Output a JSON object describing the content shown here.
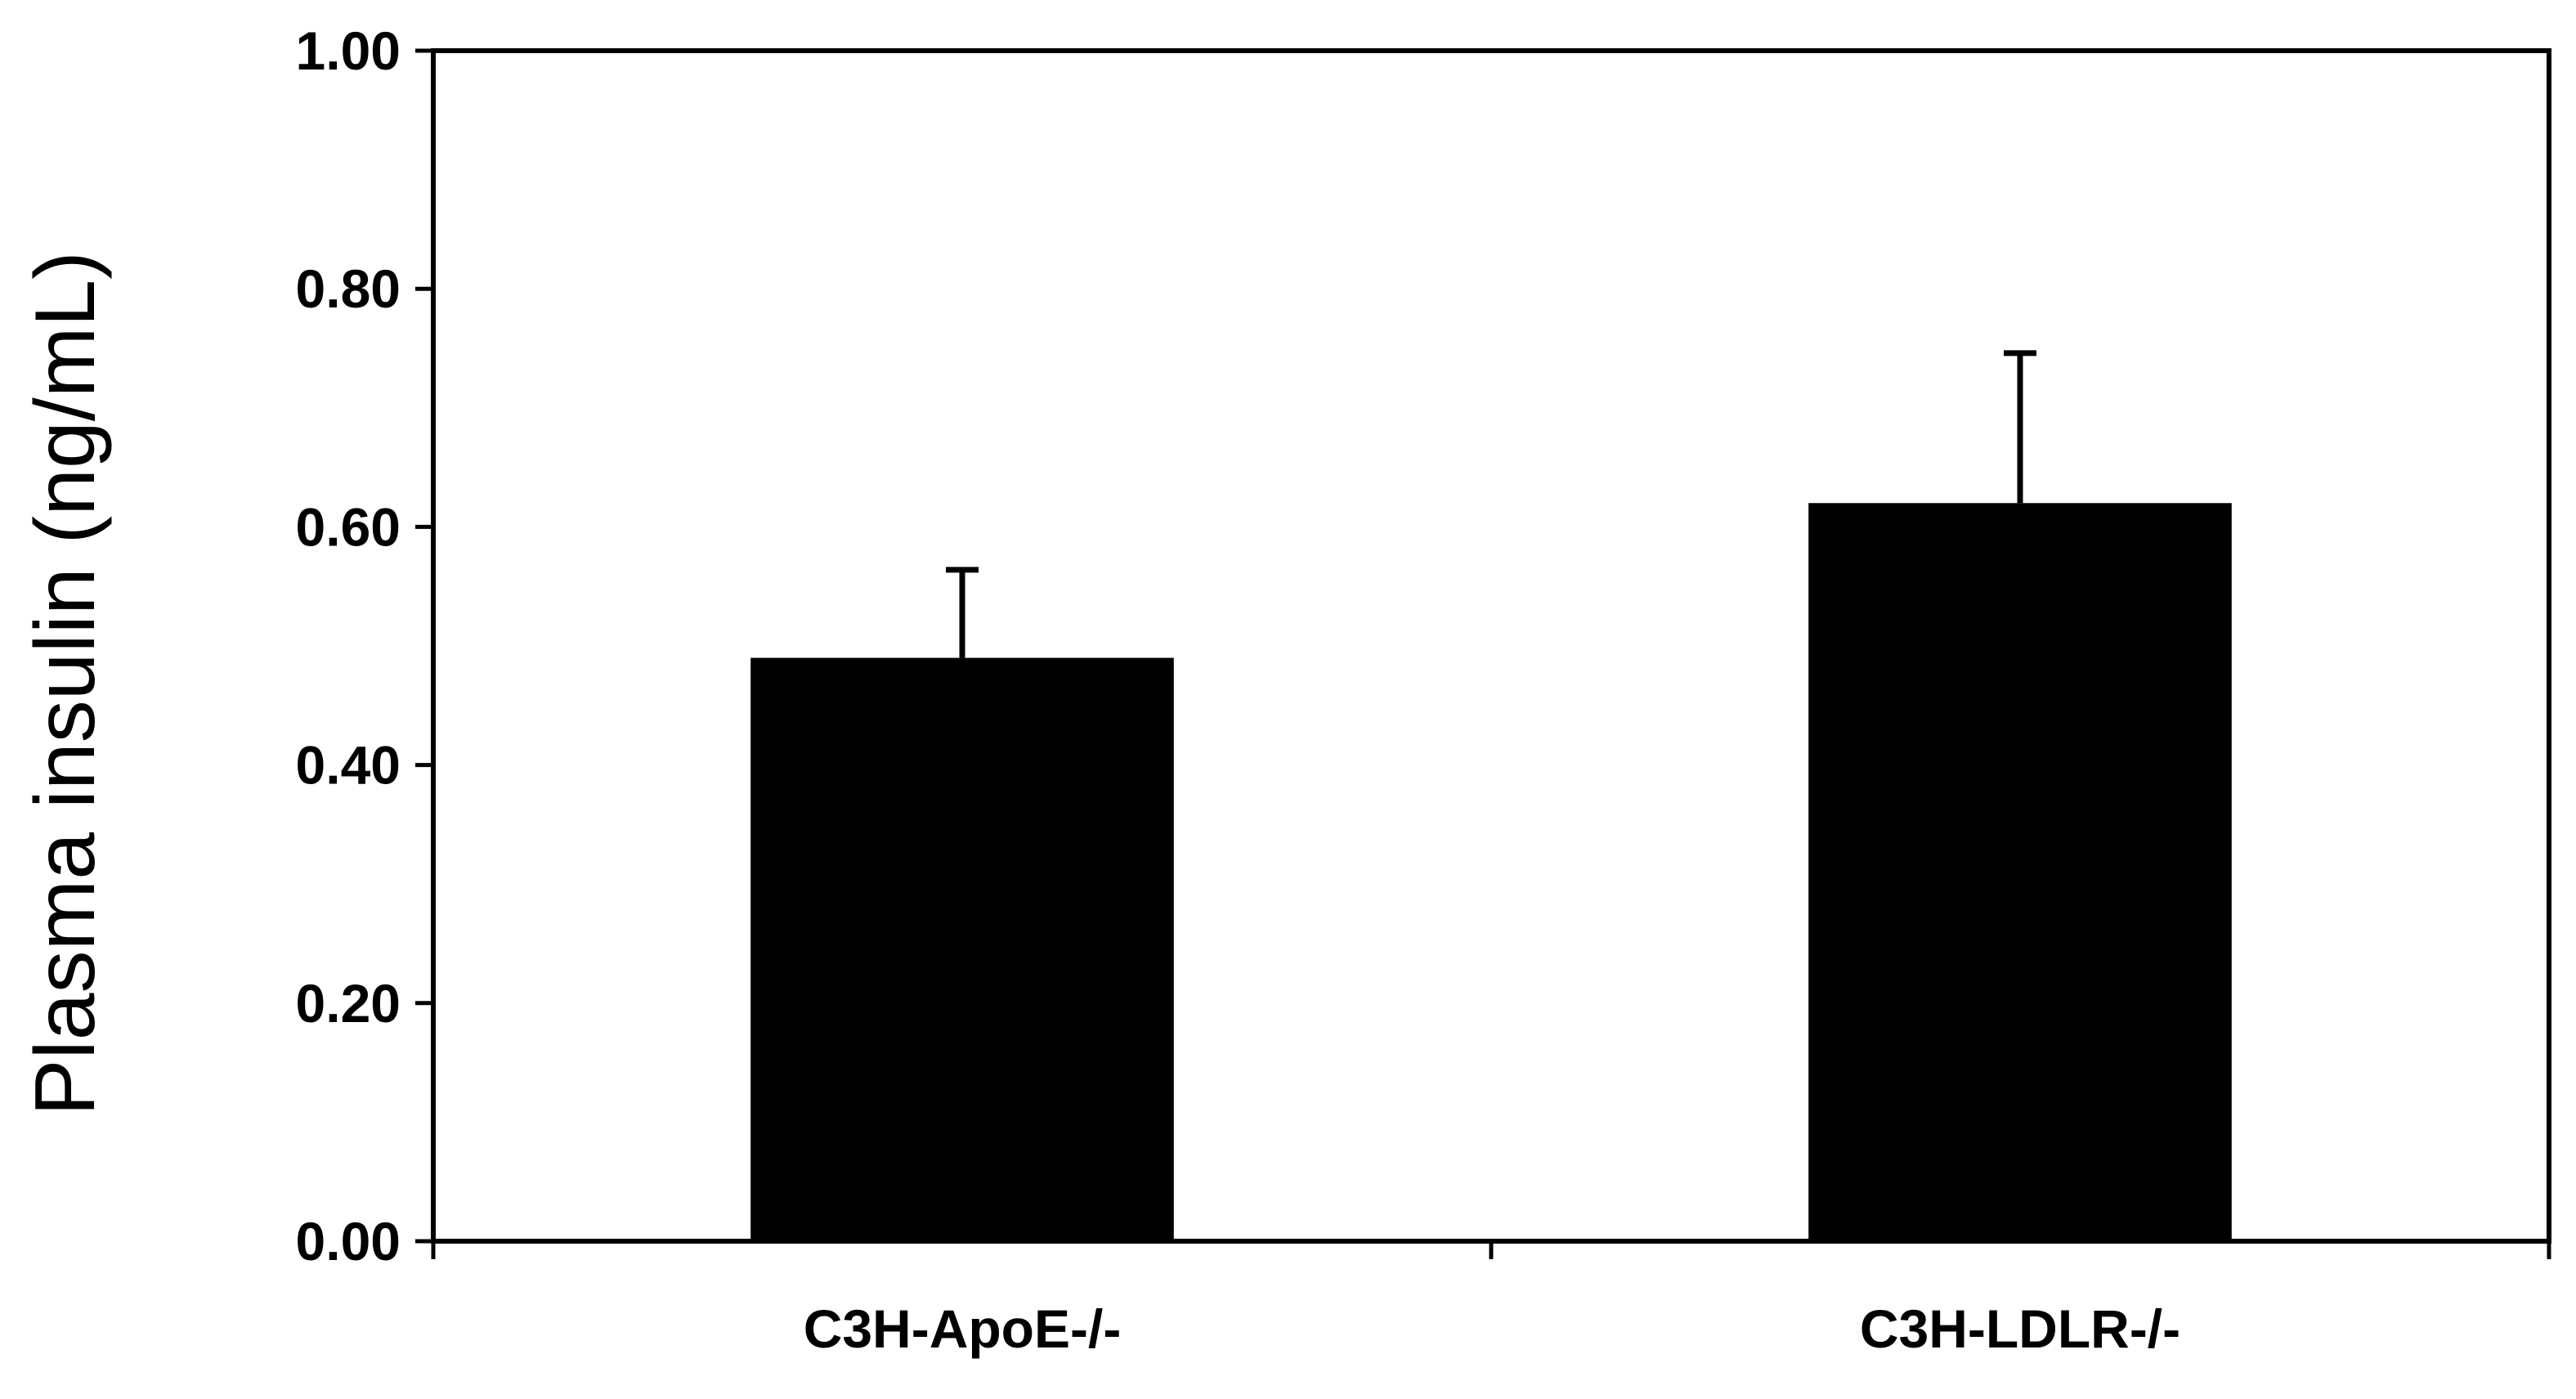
{
  "chart_data": {
    "type": "bar",
    "categories": [
      "C3H-ApoE-/-",
      "C3H-LDLR-/-"
    ],
    "values": [
      0.49,
      0.62
    ],
    "error_upper": [
      0.074,
      0.126
    ],
    "ylabel": "Plasma insulin (ng/mL)",
    "xlabel": "",
    "ylim": [
      0,
      1
    ],
    "yticks": [
      "0.00",
      "0.20",
      "0.40",
      "0.60",
      "0.80",
      "1.00"
    ],
    "grid": false,
    "bar_color": "#000000",
    "axis_color": "#000000"
  }
}
